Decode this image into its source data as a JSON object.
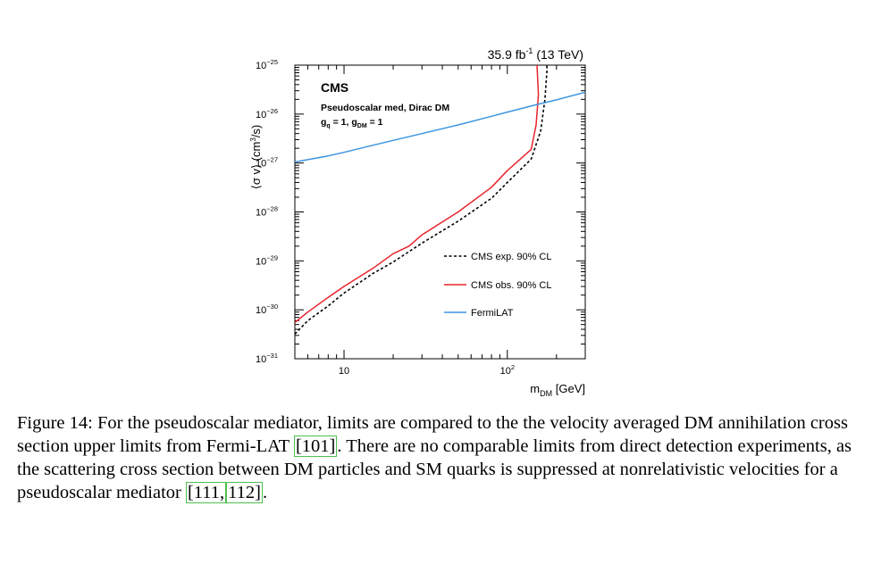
{
  "chart_data": {
    "type": "line",
    "header_lumi": "35.9 fb",
    "header_lumi_sup": "-1",
    "header_energy": " (13 TeV)",
    "experiment": "CMS",
    "model_line": "Pseudoscalar med, Dirac DM",
    "coupling_q_prefix": "g",
    "coupling_q_sub": "q",
    "coupling_q_suffix": " = 1, g",
    "coupling_dm_sub": "DM",
    "coupling_dm_suffix": " = 1",
    "xlabel_main": "m",
    "xlabel_sub": "DM",
    "xlabel_unit": " [GeV]",
    "ylabel_open": "⟨σ v⟩ (cm",
    "ylabel_sup": "3",
    "ylabel_close": "/s)",
    "x_scale": "log",
    "y_scale": "log",
    "xlim": [
      5,
      300
    ],
    "ylim": [
      1e-31,
      1e-25
    ],
    "x_ticks": [
      {
        "value": 10,
        "base": "10",
        "exp": ""
      },
      {
        "value": 100,
        "base": "10",
        "exp": "2"
      }
    ],
    "y_ticks": [
      {
        "value": 1e-25,
        "base": "10",
        "exp": "−25"
      },
      {
        "value": 1e-26,
        "base": "10",
        "exp": "−26"
      },
      {
        "value": 1e-27,
        "base": "10",
        "exp": "−27"
      },
      {
        "value": 1e-28,
        "base": "10",
        "exp": "−28"
      },
      {
        "value": 1e-29,
        "base": "10",
        "exp": "−29"
      },
      {
        "value": 1e-30,
        "base": "10",
        "exp": "−30"
      },
      {
        "value": 1e-31,
        "base": "10",
        "exp": "−31"
      }
    ],
    "legend_position": "bottom-right",
    "series": [
      {
        "name": "CMS exp. 90% CL",
        "style": "dashed",
        "color": "#000000",
        "x": [
          5,
          6,
          8,
          10,
          15,
          20,
          30,
          50,
          80,
          100,
          140,
          160,
          170,
          175,
          172,
          165
        ],
        "y": [
          3.2e-31,
          6e-31,
          1.2e-30,
          2.2e-30,
          5.5e-30,
          9.5e-30,
          2.3e-29,
          6.5e-29,
          1.9e-28,
          4e-28,
          1.2e-27,
          4.5e-27,
          2e-26,
          8e-26,
          4e-25,
          1e-25
        ]
      },
      {
        "name": "CMS obs. 90% CL",
        "style": "solid",
        "color": "#e8242c",
        "x": [
          5,
          6,
          8,
          10,
          15,
          20,
          25,
          30,
          50,
          80,
          100,
          140,
          150,
          155,
          152,
          150
        ],
        "y": [
          5.5e-31,
          9e-31,
          1.8e-30,
          3e-30,
          7e-30,
          1.4e-29,
          2e-29,
          3.4e-29,
          1e-28,
          3.2e-28,
          7e-28,
          1.9e-27,
          6e-27,
          2.5e-26,
          1e-25,
          1e-25
        ]
      },
      {
        "name": "FermiLAT",
        "style": "solid",
        "color": "#3d94e0",
        "x": [
          5,
          8,
          10,
          15,
          20,
          30,
          50,
          80,
          100,
          150,
          200,
          300
        ],
        "y": [
          1.05e-27,
          1.4e-27,
          1.65e-27,
          2.3e-27,
          2.9e-27,
          4e-27,
          6e-27,
          9e-27,
          1.1e-26,
          1.55e-26,
          1.95e-26,
          2.8e-26
        ]
      }
    ]
  },
  "caption": {
    "label": "Figure 14:",
    "text_1": " For the pseudoscalar mediator, limits are compared to the the velocity averaged DM annihilation cross section upper limits from Fermi-LAT ",
    "cite_1": "[101]",
    "text_2": ". There are no comparable limits from direct detection experiments, as the scattering cross section between DM particles and SM quarks is suppressed at nonrelativistic velocities for a pseudoscalar mediator ",
    "cite_2": "[111,",
    "cite_3": "112]",
    "text_3": "."
  }
}
